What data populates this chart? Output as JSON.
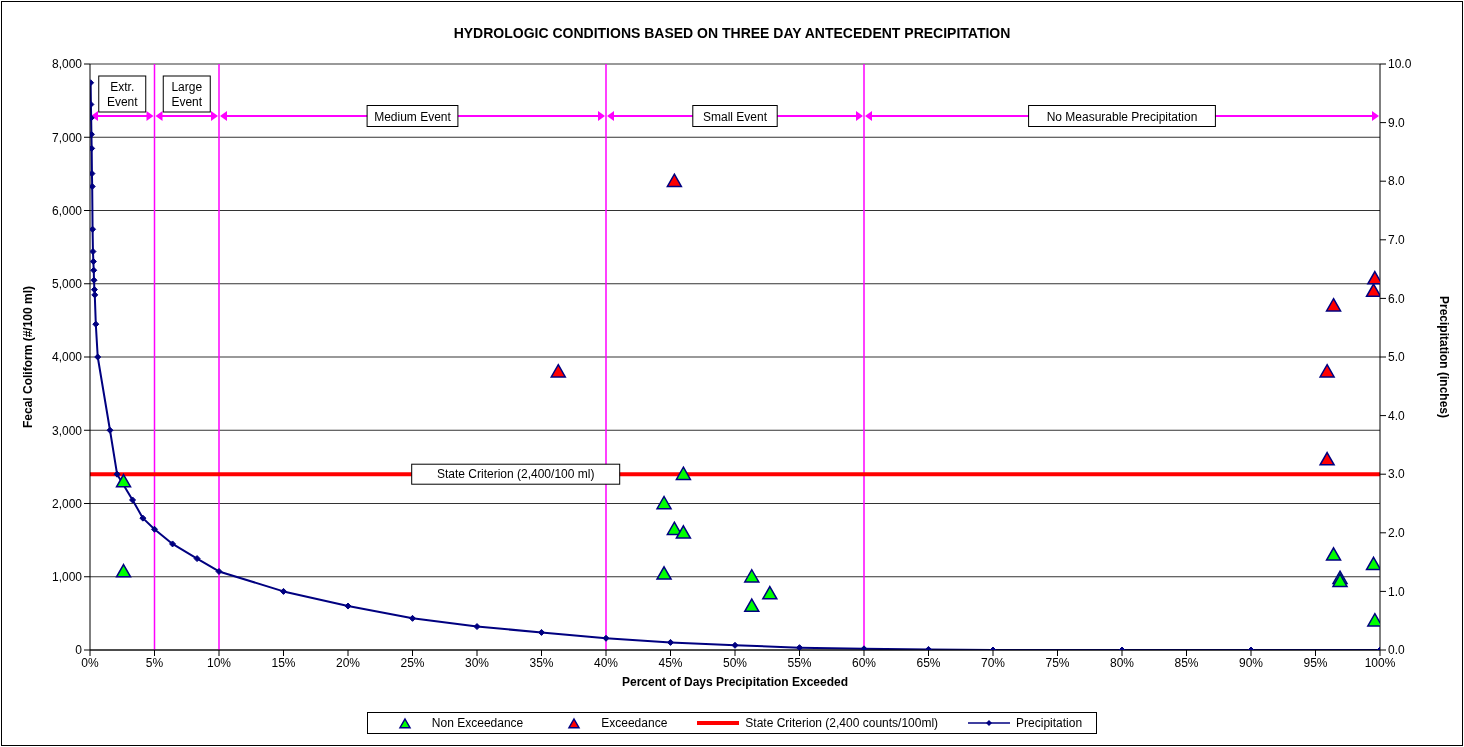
{
  "chart_data": {
    "type": "scatter",
    "title": "HYDROLOGIC CONDITIONS BASED ON THREE DAY ANTECEDENT PRECIPITATION",
    "xlabel": "Percent of Days Precipitation Exceeded",
    "ylabel": "Fecal Coliform (#/100 ml)",
    "y2label": "Precipitation (inches)",
    "xlim": [
      0,
      100
    ],
    "xticks": [
      {
        "value": 0,
        "label": "0%"
      },
      {
        "value": 5,
        "label": "5%"
      },
      {
        "value": 10,
        "label": "10%"
      },
      {
        "value": 15,
        "label": "15%"
      },
      {
        "value": 20,
        "label": "20%"
      },
      {
        "value": 25,
        "label": "25%"
      },
      {
        "value": 30,
        "label": "30%"
      },
      {
        "value": 35,
        "label": "35%"
      },
      {
        "value": 40,
        "label": "40%"
      },
      {
        "value": 45,
        "label": "45%"
      },
      {
        "value": 50,
        "label": "50%"
      },
      {
        "value": 55,
        "label": "55%"
      },
      {
        "value": 60,
        "label": "60%"
      },
      {
        "value": 65,
        "label": "65%"
      },
      {
        "value": 70,
        "label": "70%"
      },
      {
        "value": 75,
        "label": "75%"
      },
      {
        "value": 80,
        "label": "80%"
      },
      {
        "value": 85,
        "label": "85%"
      },
      {
        "value": 90,
        "label": "90%"
      },
      {
        "value": 95,
        "label": "95%"
      },
      {
        "value": 100,
        "label": "100%"
      }
    ],
    "ylim": [
      0,
      8000
    ],
    "yticks": [
      0,
      {
        "value": 1000,
        "label": "1,000"
      },
      {
        "value": 2000,
        "label": "2,000"
      },
      {
        "value": 3000,
        "label": "3,000"
      },
      {
        "value": 4000,
        "label": "4,000"
      },
      {
        "value": 5000,
        "label": "5,000"
      },
      {
        "value": 6000,
        "label": "6,000"
      },
      {
        "value": 7000,
        "label": "7,000"
      },
      {
        "value": 8000,
        "label": "8,000"
      }
    ],
    "y2lim": [
      0,
      10
    ],
    "y2ticks": [
      {
        "value": 0,
        "label": "0.0"
      },
      {
        "value": 1,
        "label": "1.0"
      },
      {
        "value": 2,
        "label": "2.0"
      },
      {
        "value": 3,
        "label": "3.0"
      },
      {
        "value": 4,
        "label": "4.0"
      },
      {
        "value": 5,
        "label": "5.0"
      },
      {
        "value": 6,
        "label": "6.0"
      },
      {
        "value": 7,
        "label": "7.0"
      },
      {
        "value": 8,
        "label": "8.0"
      },
      {
        "value": 9,
        "label": "9.0"
      },
      {
        "value": 10,
        "label": "10.0"
      }
    ],
    "grid": "y",
    "legend": "bottom",
    "series": [
      {
        "name": "Non Exceedance",
        "marker": "triangle",
        "color": "#00ff00",
        "x": [
          2.6,
          2.6,
          44.5,
          44.5,
          45.3,
          46.0,
          46.0,
          51.3,
          51.3,
          52.7,
          96.4,
          96.9,
          96.9,
          99.5,
          99.6
        ],
        "values": [
          2300,
          1070,
          2000,
          1040,
          1650,
          1600,
          2400,
          1000,
          600,
          770,
          1300,
          980,
          940,
          1170,
          400
        ]
      },
      {
        "name": "Exceedance",
        "marker": "triangle",
        "color": "#ff0000",
        "x": [
          36.3,
          45.3,
          95.9,
          95.9,
          96.4,
          99.5,
          99.6
        ],
        "values": [
          3800,
          6400,
          3800,
          2600,
          4700,
          4900,
          5070
        ]
      },
      {
        "name": "State Criterion (2,400 counts/100ml)",
        "type": "line",
        "marker": "none",
        "color": "#ff0000",
        "x": [
          0,
          100
        ],
        "values": [
          2400,
          2400
        ]
      },
      {
        "name": "Precipitation",
        "type": "line",
        "marker": "diamond",
        "axis": "y2",
        "color": "#000080",
        "x": [
          0.05,
          0.07,
          0.09,
          0.11,
          0.13,
          0.15,
          0.17,
          0.2,
          0.23,
          0.26,
          0.29,
          0.31,
          0.34,
          0.37,
          0.45,
          0.6,
          1.55,
          2.1,
          3.3,
          4.1,
          5.0,
          6.4,
          8.3,
          10,
          15,
          20,
          25,
          30,
          35,
          40,
          45,
          50,
          55,
          60,
          65,
          70,
          80,
          90,
          100
        ],
        "values": [
          9.68,
          9.31,
          9.08,
          8.8,
          8.56,
          8.13,
          7.91,
          7.18,
          6.8,
          6.63,
          6.48,
          6.31,
          6.15,
          6.06,
          5.56,
          5.0,
          3.75,
          3.0,
          2.56,
          2.25,
          2.06,
          1.81,
          1.56,
          1.34,
          1.0,
          0.75,
          0.54,
          0.4,
          0.3,
          0.2,
          0.13,
          0.08,
          0.04,
          0.02,
          0.01,
          0,
          0,
          0,
          0
        ]
      }
    ],
    "annotations": [
      "Extr. Event",
      "Large Event",
      "Medium Event",
      "Small Event",
      "No Measurable Precipitation",
      {
        "text": "State Criterion (2,400/100 ml)",
        "x": 33,
        "y": 2400
      }
    ],
    "ref_lines": [
      {
        "axis": "x",
        "value": 5,
        "color": "#ff00ff"
      },
      {
        "axis": "x",
        "value": 10,
        "color": "#ff00ff"
      },
      {
        "axis": "x",
        "value": 40,
        "color": "#ff00ff"
      },
      {
        "axis": "x",
        "value": 60,
        "color": "#ff00ff"
      }
    ]
  }
}
